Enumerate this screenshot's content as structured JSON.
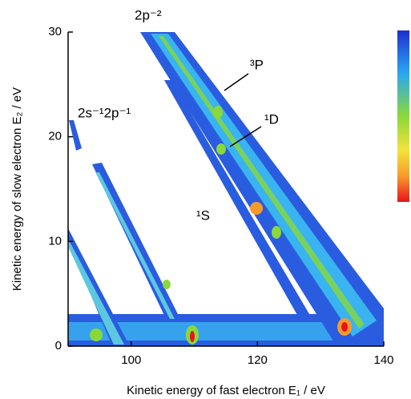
{
  "chart_data": {
    "type": "contour",
    "xlabel": "Kinetic energy of fast electron E₁ / eV",
    "ylabel": "Kinetic energy of slow electron E₂ / eV",
    "xlim": [
      90,
      140
    ],
    "xticks": [
      100,
      120,
      140
    ],
    "ylim": [
      0,
      30
    ],
    "yticks": [
      0,
      10,
      20,
      30
    ],
    "annotations": [
      "2p⁻²",
      "2s⁻¹2p⁻¹",
      "³P",
      "¹D",
      "¹S"
    ]
  }
}
